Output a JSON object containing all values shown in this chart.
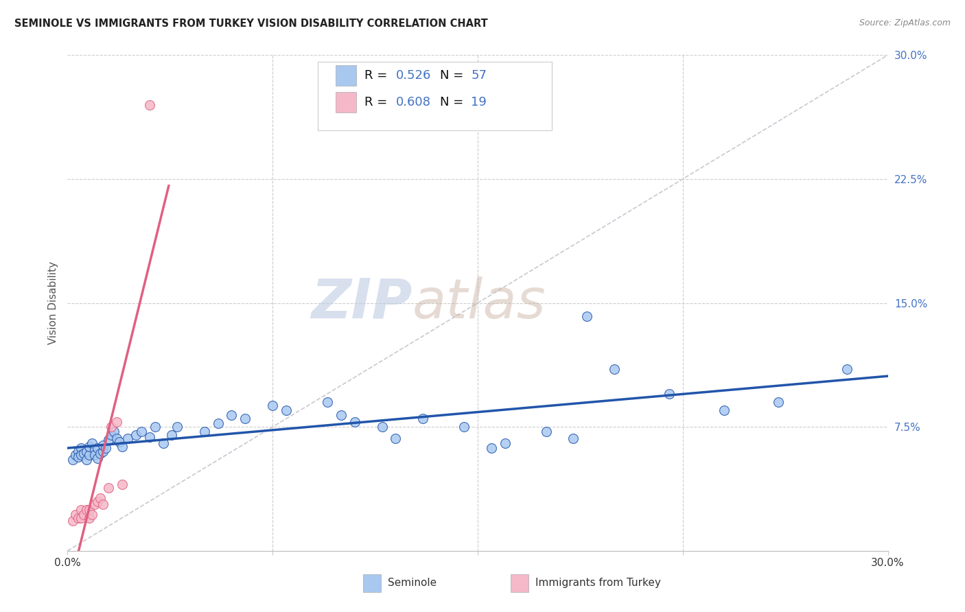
{
  "title": "SEMINOLE VS IMMIGRANTS FROM TURKEY VISION DISABILITY CORRELATION CHART",
  "source": "Source: ZipAtlas.com",
  "ylabel": "Vision Disability",
  "xlim": [
    0.0,
    0.3
  ],
  "ylim": [
    0.0,
    0.3
  ],
  "ytick_labels_right": [
    "30.0%",
    "22.5%",
    "15.0%",
    "7.5%"
  ],
  "ytick_vals_right": [
    0.3,
    0.225,
    0.15,
    0.075
  ],
  "blue_color": "#A8C8F0",
  "pink_color": "#F5B8C8",
  "blue_line_color": "#2255AA",
  "pink_line_color": "#E06080",
  "diag_color": "#C8C8D0",
  "watermark_zip": "ZIP",
  "watermark_atlas": "atlas",
  "seminole_x": [
    0.002,
    0.003,
    0.004,
    0.004,
    0.005,
    0.005,
    0.006,
    0.007,
    0.007,
    0.008,
    0.008,
    0.009,
    0.01,
    0.01,
    0.011,
    0.011,
    0.012,
    0.013,
    0.013,
    0.014,
    0.015,
    0.016,
    0.017,
    0.018,
    0.019,
    0.02,
    0.022,
    0.025,
    0.027,
    0.03,
    0.032,
    0.035,
    0.038,
    0.04,
    0.05,
    0.055,
    0.06,
    0.065,
    0.075,
    0.08,
    0.095,
    0.1,
    0.105,
    0.115,
    0.12,
    0.13,
    0.145,
    0.155,
    0.16,
    0.175,
    0.185,
    0.2,
    0.22,
    0.24,
    0.26,
    0.285,
    0.19
  ],
  "seminole_y": [
    0.055,
    0.058,
    0.06,
    0.057,
    0.062,
    0.058,
    0.059,
    0.055,
    0.06,
    0.058,
    0.063,
    0.065,
    0.061,
    0.058,
    0.056,
    0.062,
    0.059,
    0.06,
    0.064,
    0.062,
    0.067,
    0.07,
    0.072,
    0.068,
    0.066,
    0.063,
    0.068,
    0.07,
    0.072,
    0.069,
    0.075,
    0.065,
    0.07,
    0.075,
    0.072,
    0.077,
    0.082,
    0.08,
    0.088,
    0.085,
    0.09,
    0.082,
    0.078,
    0.075,
    0.068,
    0.08,
    0.075,
    0.062,
    0.065,
    0.072,
    0.068,
    0.11,
    0.095,
    0.085,
    0.09,
    0.11,
    0.142
  ],
  "turkey_x": [
    0.002,
    0.003,
    0.004,
    0.005,
    0.005,
    0.006,
    0.007,
    0.008,
    0.008,
    0.009,
    0.01,
    0.011,
    0.012,
    0.013,
    0.015,
    0.016,
    0.018,
    0.02,
    0.03
  ],
  "turkey_y": [
    0.018,
    0.022,
    0.02,
    0.025,
    0.02,
    0.022,
    0.025,
    0.02,
    0.025,
    0.022,
    0.028,
    0.03,
    0.032,
    0.028,
    0.038,
    0.075,
    0.078,
    0.04,
    0.27
  ],
  "pink_line_x": [
    0.0,
    0.037
  ],
  "pink_line_y_start": null,
  "pink_line_y_end": null
}
